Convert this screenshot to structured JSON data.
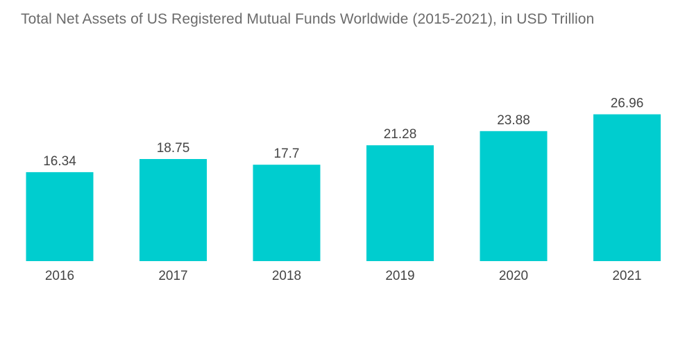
{
  "chart_data": {
    "type": "bar",
    "title": "Total Net Assets of US Registered Mutual Funds Worldwide (2015-2021), in USD Trillion",
    "categories": [
      "2016",
      "2017",
      "2018",
      "2019",
      "2020",
      "2021"
    ],
    "values": [
      16.34,
      18.75,
      17.7,
      21.28,
      23.88,
      26.96
    ],
    "value_labels": [
      "16.34",
      "18.75",
      "17.7",
      "21.28",
      "23.88",
      "26.96"
    ],
    "xlabel": "",
    "ylabel": "",
    "ylim": [
      0,
      30
    ],
    "grid": false,
    "legend": "none",
    "bar_color": "#00CDCF"
  }
}
